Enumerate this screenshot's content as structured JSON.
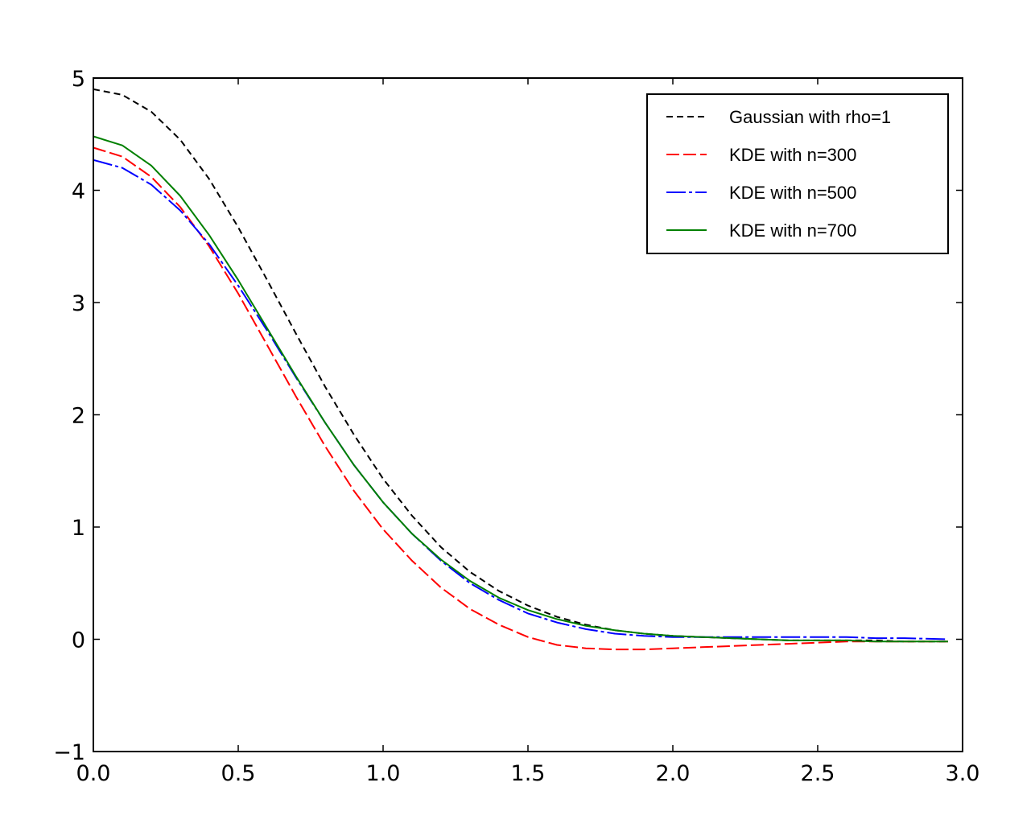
{
  "chart_data": {
    "type": "line",
    "title": "",
    "xlabel": "",
    "ylabel": "",
    "xlim": [
      0.0,
      3.0
    ],
    "ylim": [
      -1,
      5
    ],
    "x_ticks": [
      "0.0",
      "0.5",
      "1.0",
      "1.5",
      "2.0",
      "2.5",
      "3.0"
    ],
    "y_ticks": [
      "−1",
      "0",
      "1",
      "2",
      "3",
      "4",
      "5"
    ],
    "grid": false,
    "legend_position": "top-right",
    "series": [
      {
        "name": "Gaussian with rho=1",
        "color": "#000000",
        "dash": "8,5",
        "x": [
          0.0,
          0.1,
          0.2,
          0.3,
          0.4,
          0.5,
          0.6,
          0.7,
          0.8,
          0.9,
          1.0,
          1.1,
          1.2,
          1.3,
          1.4,
          1.5,
          1.6,
          1.7,
          1.8,
          1.9,
          2.0,
          2.1,
          2.2,
          2.3,
          2.4,
          2.5,
          2.6,
          2.7,
          2.8,
          2.95
        ],
        "y": [
          4.9,
          4.85,
          4.7,
          4.45,
          4.1,
          3.67,
          3.2,
          2.72,
          2.25,
          1.82,
          1.43,
          1.1,
          0.82,
          0.6,
          0.43,
          0.3,
          0.2,
          0.13,
          0.08,
          0.05,
          0.03,
          0.02,
          0.01,
          0.0,
          -0.01,
          -0.01,
          -0.01,
          -0.01,
          -0.02,
          -0.02
        ]
      },
      {
        "name": "KDE with n=300",
        "color": "#ff0000",
        "dash": "16,5",
        "x": [
          0.0,
          0.1,
          0.2,
          0.3,
          0.4,
          0.5,
          0.6,
          0.7,
          0.8,
          0.9,
          1.0,
          1.1,
          1.2,
          1.3,
          1.4,
          1.5,
          1.6,
          1.7,
          1.8,
          1.9,
          2.0,
          2.1,
          2.2,
          2.3,
          2.4,
          2.5,
          2.6,
          2.7,
          2.8,
          2.95
        ],
        "y": [
          4.38,
          4.3,
          4.12,
          3.85,
          3.5,
          3.08,
          2.62,
          2.16,
          1.72,
          1.32,
          0.98,
          0.7,
          0.46,
          0.27,
          0.13,
          0.02,
          -0.05,
          -0.08,
          -0.09,
          -0.09,
          -0.08,
          -0.07,
          -0.06,
          -0.05,
          -0.04,
          -0.03,
          -0.02,
          -0.02,
          -0.02,
          -0.02
        ]
      },
      {
        "name": "KDE with n=500",
        "color": "#0000ff",
        "dash": "24,4,4,4",
        "x": [
          0.0,
          0.1,
          0.2,
          0.3,
          0.4,
          0.5,
          0.6,
          0.7,
          0.8,
          0.9,
          1.0,
          1.1,
          1.2,
          1.3,
          1.4,
          1.5,
          1.6,
          1.7,
          1.8,
          1.9,
          2.0,
          2.1,
          2.2,
          2.3,
          2.4,
          2.5,
          2.6,
          2.7,
          2.8,
          2.95
        ],
        "y": [
          4.27,
          4.2,
          4.05,
          3.82,
          3.52,
          3.15,
          2.75,
          2.33,
          1.93,
          1.55,
          1.22,
          0.94,
          0.7,
          0.5,
          0.35,
          0.23,
          0.15,
          0.09,
          0.05,
          0.03,
          0.02,
          0.02,
          0.02,
          0.02,
          0.02,
          0.02,
          0.02,
          0.01,
          0.01,
          0.0
        ]
      },
      {
        "name": "KDE with n=700",
        "color": "#008000",
        "dash": "",
        "x": [
          0.0,
          0.1,
          0.2,
          0.3,
          0.4,
          0.5,
          0.6,
          0.7,
          0.8,
          0.9,
          1.0,
          1.1,
          1.2,
          1.3,
          1.4,
          1.5,
          1.6,
          1.7,
          1.8,
          1.9,
          2.0,
          2.1,
          2.2,
          2.3,
          2.4,
          2.5,
          2.6,
          2.7,
          2.8,
          2.95
        ],
        "y": [
          4.48,
          4.4,
          4.22,
          3.95,
          3.6,
          3.2,
          2.77,
          2.34,
          1.93,
          1.55,
          1.22,
          0.94,
          0.71,
          0.52,
          0.37,
          0.26,
          0.18,
          0.12,
          0.08,
          0.05,
          0.03,
          0.02,
          0.01,
          0.0,
          -0.01,
          -0.01,
          -0.01,
          -0.02,
          -0.02,
          -0.02
        ]
      }
    ]
  }
}
